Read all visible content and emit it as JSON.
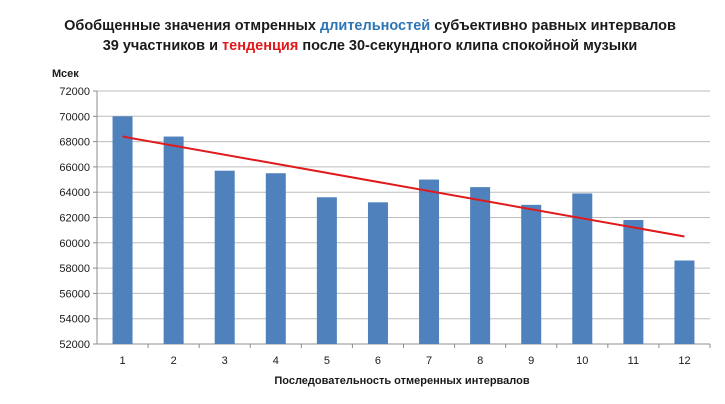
{
  "chart_data": {
    "type": "bar",
    "title_parts": [
      {
        "text": "Обобщенные значения отмренных ",
        "color": "#1a1a1a"
      },
      {
        "text": "длительностей",
        "color": "#2e75b6"
      },
      {
        "text": " субъективно равных интервалов 39 участников и ",
        "color": "#1a1a1a"
      },
      {
        "text": "тенденция",
        "color": "#e0191b"
      },
      {
        "text": " после 30-секундного клипа спокойной музыки",
        "color": "#1a1a1a"
      }
    ],
    "xlabel": "Последовательность  отмеренных  интервалов",
    "ylabel": "Мсек",
    "categories": [
      "1",
      "2",
      "3",
      "4",
      "5",
      "6",
      "7",
      "8",
      "9",
      "10",
      "11",
      "12"
    ],
    "values": [
      70000,
      68400,
      65700,
      65500,
      63600,
      63200,
      65000,
      64400,
      63000,
      63900,
      61800,
      58600
    ],
    "ylim": [
      52000,
      72000
    ],
    "yticks": [
      52000,
      54000,
      56000,
      58000,
      60000,
      62000,
      64000,
      66000,
      68000,
      70000,
      72000
    ],
    "trendline": {
      "start": 68400,
      "end": 60500
    },
    "grid": true,
    "bar_color": "#4f81bd",
    "trend_color": "#e0191b"
  }
}
